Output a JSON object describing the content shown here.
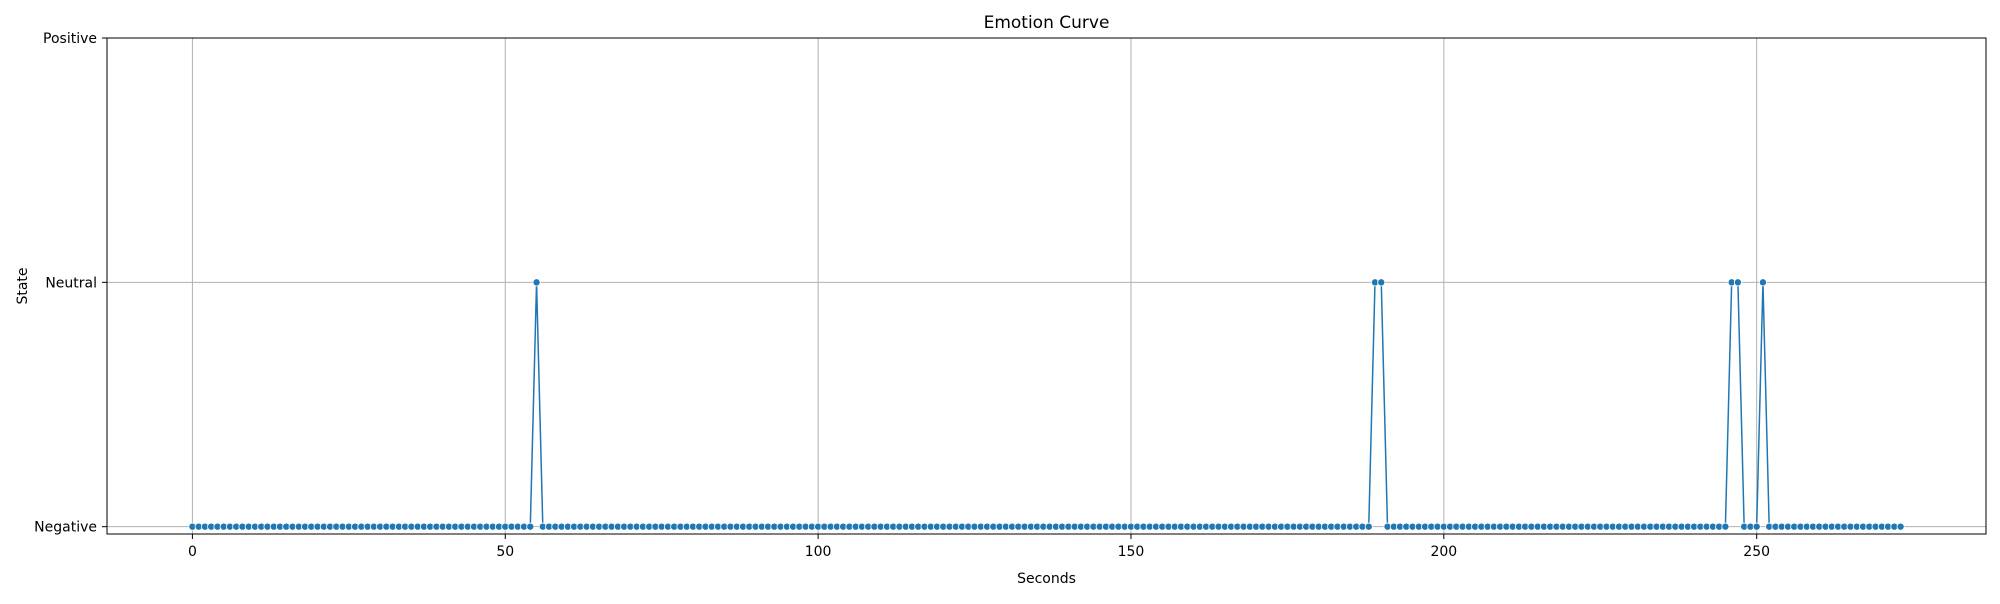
{
  "chart_data": {
    "type": "line",
    "title": "Emotion Curve",
    "xlabel": "Seconds",
    "ylabel": "State",
    "xlim": [
      -13.65,
      286.65
    ],
    "ylim": [
      -0.03,
      2.0
    ],
    "x_ticks": [
      0,
      50,
      100,
      150,
      200,
      250
    ],
    "y_ticks": [
      {
        "value": 0,
        "label": "Negative"
      },
      {
        "value": 1,
        "label": "Neutral"
      },
      {
        "value": 2,
        "label": "Positive"
      }
    ],
    "grid": true,
    "marker": "circle",
    "series": [
      {
        "color": "#1f77b4",
        "x_start": 0,
        "x_end": 273,
        "x_step": 1,
        "default_value": 0,
        "exceptions": [
          {
            "x": 55,
            "y": 1
          },
          {
            "x": 189,
            "y": 1
          },
          {
            "x": 190,
            "y": 1
          },
          {
            "x": 246,
            "y": 1
          },
          {
            "x": 247,
            "y": 1
          },
          {
            "x": 251,
            "y": 1
          }
        ]
      }
    ]
  }
}
